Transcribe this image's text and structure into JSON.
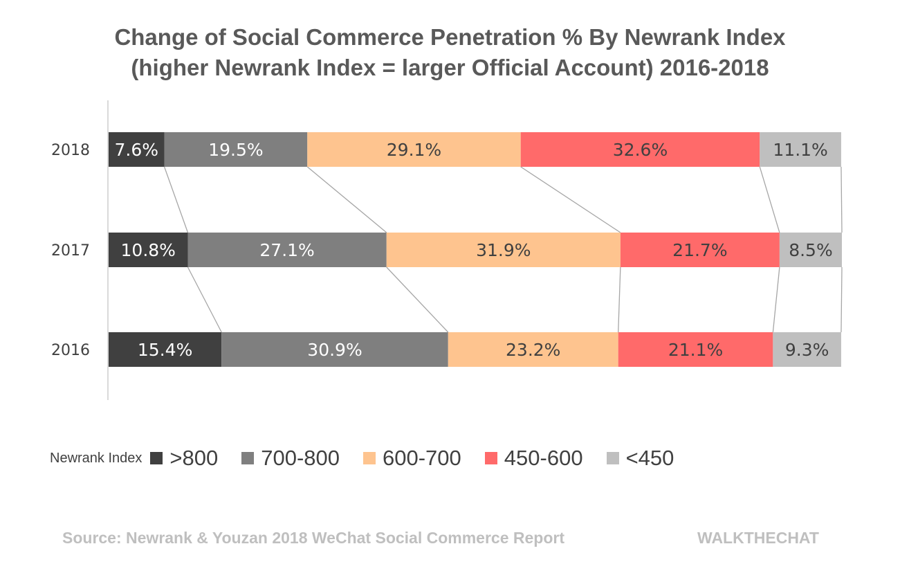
{
  "chart_data": {
    "type": "bar",
    "orientation": "horizontal",
    "stacked": true,
    "normalized": true,
    "title": "Change of Social Commerce Penetration % By Newrank Index",
    "subtitle": "(higher Newrank Index = larger Official Account) 2016-2018",
    "xlabel": "",
    "ylabel": "",
    "xlim": [
      0,
      100
    ],
    "grid": false,
    "series_lines": true,
    "categories": [
      "2018",
      "2017",
      "2016"
    ],
    "series": [
      {
        "name": ">800",
        "color": "#404040",
        "label_color": "#ffffff",
        "values": [
          7.6,
          10.8,
          15.4
        ]
      },
      {
        "name": "700-800",
        "color": "#7f7f7f",
        "label_color": "#ffffff",
        "values": [
          19.5,
          27.1,
          30.9
        ]
      },
      {
        "name": "600-700",
        "color": "#fec48f",
        "label_color": "#404040",
        "values": [
          29.1,
          31.9,
          23.2
        ]
      },
      {
        "name": "450-600",
        "color": "#ff6a6a",
        "label_color": "#404040",
        "values": [
          32.6,
          21.7,
          21.1
        ]
      },
      {
        "name": "<450",
        "color": "#bfbfbf",
        "label_color": "#404040",
        "values": [
          11.1,
          8.5,
          9.3
        ]
      }
    ],
    "data_labels": [
      [
        "7.6%",
        "19.5%",
        "29.1%",
        "32.6%",
        "11.1%"
      ],
      [
        "10.8%",
        "27.1%",
        "31.9%",
        "21.7%",
        "8.5%"
      ],
      [
        "15.4%",
        "30.9%",
        "23.2%",
        "21.1%",
        "9.3%"
      ]
    ],
    "legend": {
      "title": "Newrank Index",
      "position": "bottom"
    }
  },
  "footer": {
    "source": "Source: Newrank & Youzan 2018 WeChat Social Commerce Report",
    "brand": "WALKTHECHAT"
  }
}
